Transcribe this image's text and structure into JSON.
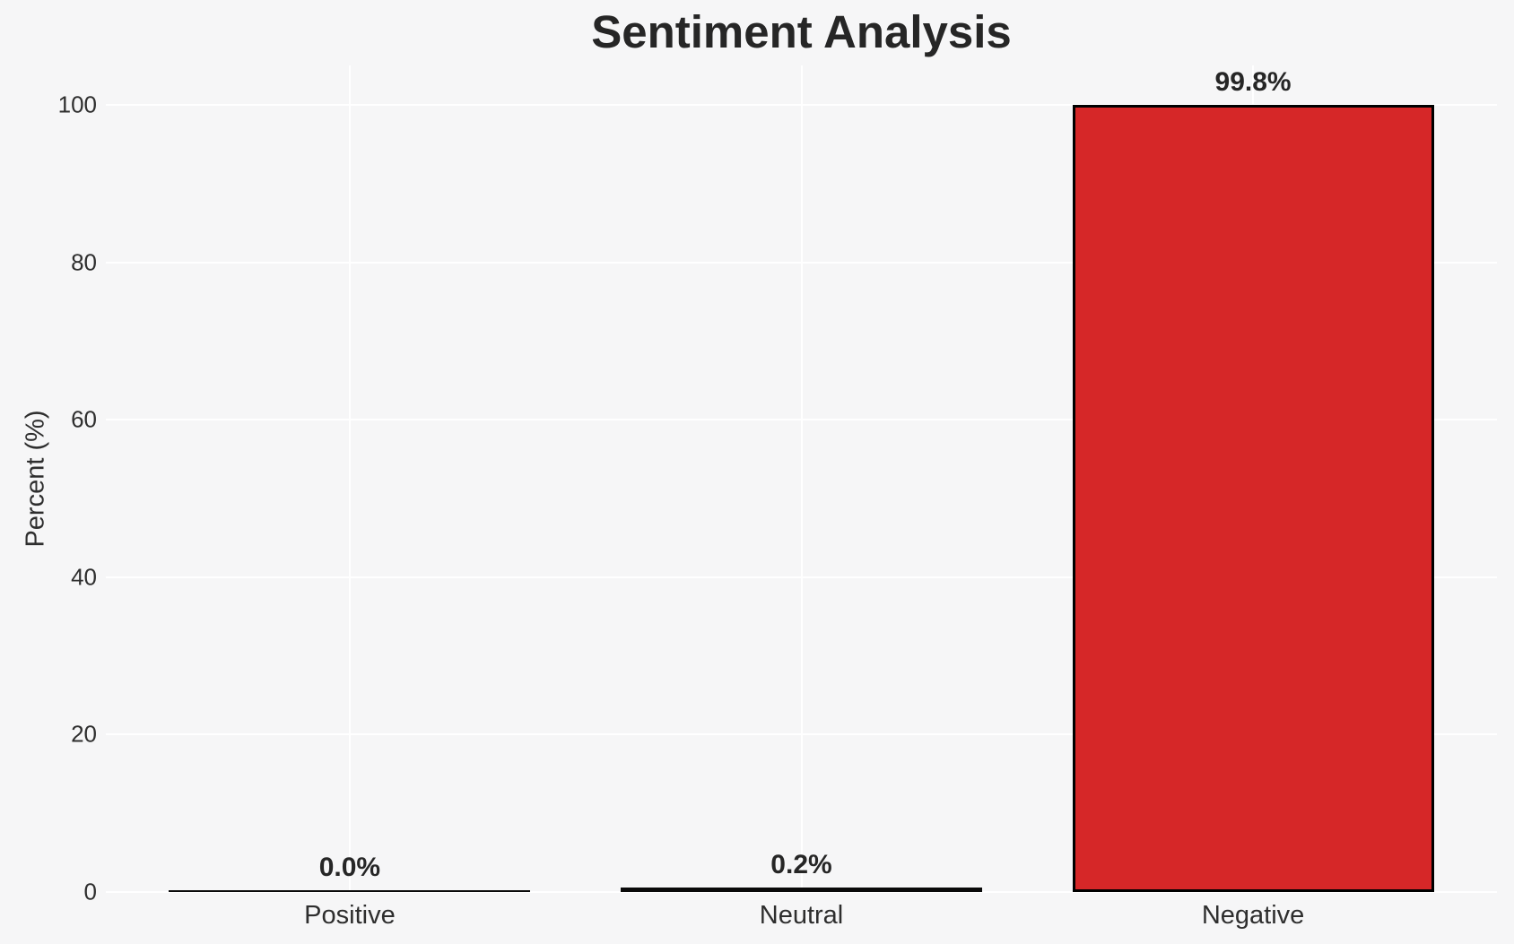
{
  "chart_data": {
    "type": "bar",
    "title": "Sentiment Analysis",
    "categories": [
      "Positive",
      "Neutral",
      "Negative"
    ],
    "values": [
      0.0,
      0.2,
      99.8
    ],
    "value_labels": [
      "0.0%",
      "0.2%",
      "99.8%"
    ],
    "xlabel": "",
    "ylabel": "Percent (%)",
    "ylim": [
      0,
      105
    ],
    "yticks": [
      0,
      20,
      40,
      60,
      80,
      100
    ],
    "ytick_labels": [
      "0",
      "20",
      "40",
      "60",
      "80",
      "100"
    ],
    "grid": true,
    "legend": false,
    "colors": {
      "background": "#f6f6f7",
      "gridline": "#ffffff",
      "bar_fill": "#d62728",
      "bar_edge": "#000000",
      "title_text": "#262626",
      "tick_text": "#2e2e2e"
    }
  }
}
